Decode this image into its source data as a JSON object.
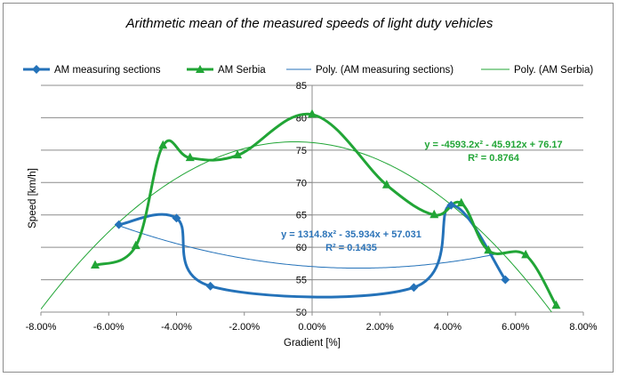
{
  "chart_data": {
    "type": "line",
    "title": "Arithmetic mean of the measured speeds of light duty vehicles",
    "xlabel": "Gradient [%]",
    "ylabel": "Speed [km/h]",
    "xlim": [
      -0.08,
      0.08
    ],
    "ylim": [
      50,
      85
    ],
    "x_ticks": [
      -0.08,
      -0.06,
      -0.04,
      -0.02,
      0.0,
      0.02,
      0.04,
      0.06,
      0.08
    ],
    "x_tick_labels": [
      "-8.00%",
      "-6.00%",
      "-4.00%",
      "-2.00%",
      "0.00%",
      "2.00%",
      "4.00%",
      "6.00%",
      "8.00%"
    ],
    "y_ticks": [
      50,
      55,
      60,
      65,
      70,
      75,
      80,
      85
    ],
    "y_tick_labels": [
      "50",
      "55",
      "60",
      "65",
      "70",
      "75",
      "80",
      "85"
    ],
    "grid": "horizontal",
    "legend_position": "top",
    "series": [
      {
        "name": "AM measuring sections",
        "color": "#2472b9",
        "marker": "diamond",
        "x": [
          -0.057,
          -0.04,
          -0.03,
          0.03,
          0.041,
          0.057
        ],
        "y": [
          63.5,
          64.5,
          54.0,
          53.8,
          66.5,
          55.0
        ]
      },
      {
        "name": "AM Serbia",
        "color": "#21a536",
        "marker": "triangle",
        "x": [
          -0.064,
          -0.052,
          -0.044,
          -0.036,
          -0.022,
          0.0,
          0.022,
          0.036,
          0.044,
          0.052,
          0.063,
          0.072
        ],
        "y": [
          57.2,
          60.2,
          75.7,
          73.8,
          74.2,
          80.5,
          69.6,
          65.0,
          66.8,
          59.5,
          58.8,
          51.0
        ]
      }
    ],
    "trendlines": [
      {
        "name": "Poly. (AM measuring sections)",
        "color": "#2472b9",
        "coefficients": [
          1314.8,
          -35.934,
          57.031
        ],
        "x_range": [
          -0.057,
          0.057
        ],
        "equation": "y = 1314.8x² - 35.934x + 57.031",
        "r_squared": "R² = 0.1435"
      },
      {
        "name": "Poly. (AM Serbia)",
        "color": "#21a536",
        "coefficients": [
          -4593.2,
          -45.912,
          76.17
        ],
        "x_range": [
          -0.08,
          0.08
        ],
        "equation": "y = -4593.2x² - 45.912x + 76.17",
        "r_squared": "R² = 0.8764"
      }
    ]
  }
}
